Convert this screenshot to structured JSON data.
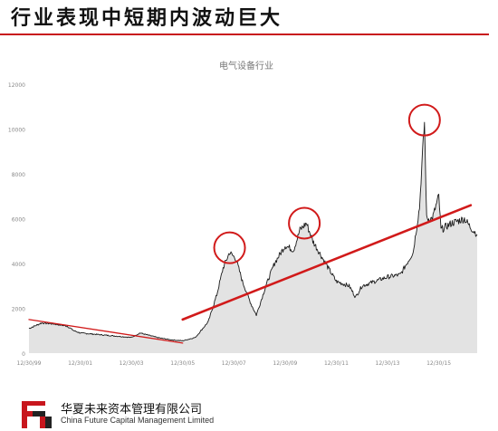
{
  "header": {
    "title": "行业表现中短期内波动巨大"
  },
  "footer": {
    "company_cn": "华夏未来资本管理有限公司",
    "company_en": "China Future Capital Management Limited",
    "logo_icon": "fc-logo-icon"
  },
  "colors": {
    "accent": "#c8161d",
    "area_fill": "#e3e3e3",
    "series_line": "#1a1a1a",
    "trend_line": "#d11a1a",
    "axis_text": "#888888"
  },
  "chart_data": {
    "type": "area",
    "title": "电气设备行业",
    "xlabel": "",
    "ylabel": "",
    "ylim": [
      0,
      12000
    ],
    "yticks": [
      0,
      2000,
      4000,
      6000,
      8000,
      10000,
      12000
    ],
    "xlim": [
      "1999-12-30",
      "2017-06-30"
    ],
    "xticks": [
      "12/30/99",
      "12/30/01",
      "12/30/03",
      "12/30/05",
      "12/30/07",
      "12/30/09",
      "12/30/11",
      "12/30/13",
      "12/30/15"
    ],
    "grid": false,
    "legend": "none",
    "series": [
      {
        "type": "area",
        "x": [
          "1999-12-30",
          "2000-06-30",
          "2000-12-30",
          "2001-06-30",
          "2001-09-30",
          "2001-12-30",
          "2002-06-30",
          "2002-12-30",
          "2003-06-30",
          "2003-12-30",
          "2004-04-30",
          "2004-12-30",
          "2005-06-30",
          "2005-12-30",
          "2006-06-30",
          "2006-12-30",
          "2007-04-30",
          "2007-07-30",
          "2007-10-30",
          "2008-01-30",
          "2008-04-30",
          "2008-08-30",
          "2008-11-15",
          "2009-03-30",
          "2009-07-30",
          "2009-12-30",
          "2010-04-30",
          "2010-07-30",
          "2010-10-30",
          "2011-01-30",
          "2011-04-30",
          "2011-07-30",
          "2011-12-30",
          "2012-06-30",
          "2012-09-30",
          "2012-12-30",
          "2013-06-30",
          "2013-12-30",
          "2014-06-30",
          "2014-12-30",
          "2015-03-30",
          "2015-05-15",
          "2015-06-10",
          "2015-07-10",
          "2015-09-30",
          "2015-12-30",
          "2016-01-30",
          "2016-06-30",
          "2016-12-30",
          "2017-03-30",
          "2017-06-30"
        ],
        "y": [
          1100,
          1350,
          1300,
          1200,
          1000,
          900,
          850,
          800,
          750,
          700,
          900,
          700,
          600,
          550,
          700,
          1400,
          2600,
          3800,
          4500,
          4200,
          3200,
          2200,
          1700,
          3000,
          4000,
          4800,
          4600,
          5500,
          5800,
          5000,
          4500,
          4000,
          3200,
          3000,
          2500,
          3000,
          3200,
          3400,
          3500,
          4500,
          6500,
          9000,
          10300,
          6000,
          6000,
          7000,
          5500,
          5800,
          6000,
          5600,
          5300
        ]
      },
      {
        "type": "trend",
        "x": [
          "1999-12-30",
          "2005-12-30"
        ],
        "y": [
          1500,
          450
        ]
      },
      {
        "type": "trend",
        "x": [
          "2005-12-30",
          "2017-03-30"
        ],
        "y": [
          1500,
          6600
        ]
      }
    ],
    "annotations": [
      {
        "type": "circle",
        "x": "2007-10-30",
        "y": 4700
      },
      {
        "type": "circle",
        "x": "2010-09-30",
        "y": 5800
      },
      {
        "type": "circle",
        "x": "2015-06-10",
        "y": 10400
      }
    ]
  }
}
